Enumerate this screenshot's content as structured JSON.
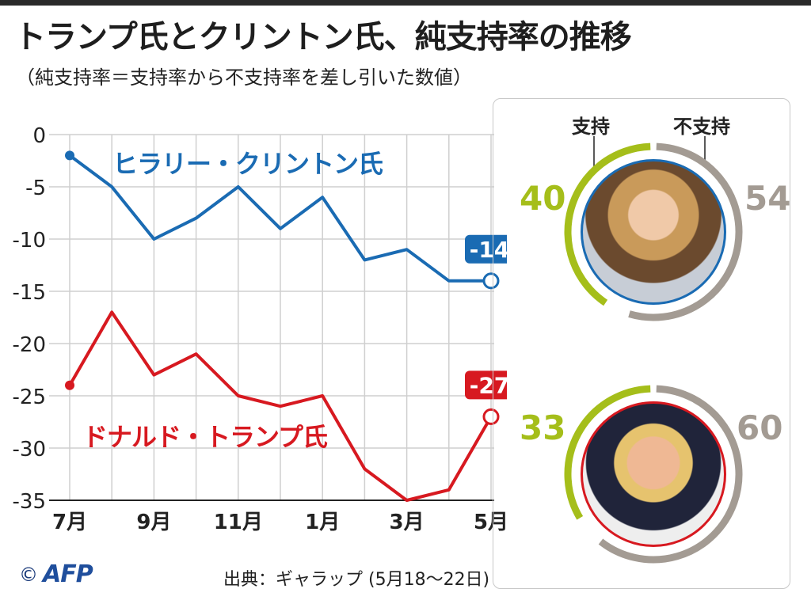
{
  "title": "トランプ氏とクリントン氏、純支持率の推移",
  "subtitle": "（純支持率＝支持率から不支持率を差し引いた数値）",
  "chart_data": {
    "type": "line",
    "x_ticks": [
      "7月",
      "9月",
      "11月",
      "1月",
      "3月",
      "5月"
    ],
    "y_ticks": [
      "0",
      "-5",
      "-10",
      "-15",
      "-20",
      "-25",
      "-30",
      "-35"
    ],
    "ylim": [
      -35,
      0
    ],
    "grid": true,
    "series": [
      {
        "name": "ヒラリー・クリントン氏",
        "color": "#1a6bb3",
        "values": [
          -2,
          -5,
          -10,
          -8,
          -5,
          -9,
          -6,
          -12,
          -11,
          -14,
          -14
        ],
        "end_label": "-14"
      },
      {
        "name": "ドナルド・トランプ氏",
        "color": "#d71920",
        "values": [
          -24,
          -17,
          -23,
          -21,
          -25,
          -26,
          -25,
          -32,
          -35,
          -34,
          -27
        ],
        "end_label": "-27"
      }
    ]
  },
  "approval": {
    "support_label": "支持",
    "disapprove_label": "不支持",
    "clinton": {
      "support": "40",
      "disapprove": "54"
    },
    "trump": {
      "support": "33",
      "disapprove": "60"
    }
  },
  "colors": {
    "support": "#a5be1a",
    "disapprove": "#a39b93",
    "clinton": "#1a6bb3",
    "trump": "#d71920"
  },
  "footer": {
    "copyright": "©",
    "logo": "AFP",
    "source": "出典：ギャラップ (5月18〜22日)"
  }
}
